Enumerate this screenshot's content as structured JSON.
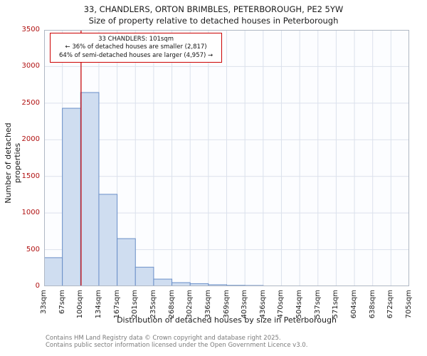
{
  "chart_data": {
    "type": "bar",
    "title": "33, CHANDLERS, ORTON BRIMBLES, PETERBOROUGH, PE2 5YW",
    "subtitle": "Size of property relative to detached houses in Peterborough",
    "xlabel": "Distribution of detached houses by size in Peterborough",
    "ylabel": "Number of detached properties",
    "x_tick_labels": [
      "33sqm",
      "67sqm",
      "100sqm",
      "134sqm",
      "167sqm",
      "201sqm",
      "235sqm",
      "268sqm",
      "302sqm",
      "336sqm",
      "369sqm",
      "403sqm",
      "436sqm",
      "470sqm",
      "504sqm",
      "537sqm",
      "571sqm",
      "604sqm",
      "638sqm",
      "672sqm",
      "705sqm"
    ],
    "bin_edges_sqm": [
      33,
      67,
      100,
      134,
      167,
      201,
      235,
      268,
      302,
      336,
      369,
      403,
      436,
      470,
      504,
      537,
      571,
      604,
      638,
      672,
      705
    ],
    "values": [
      390,
      2430,
      2645,
      1255,
      650,
      260,
      97,
      49,
      35,
      20,
      12,
      10,
      0,
      0,
      0,
      0,
      0,
      0,
      0,
      0
    ],
    "ylim": [
      0,
      3500
    ],
    "y_ticks": [
      0,
      500,
      1000,
      1500,
      2000,
      2500,
      3000,
      3500
    ],
    "grid": true,
    "marker": {
      "value_sqm": 101,
      "color": "#cc0000"
    },
    "annotation": {
      "line1": "33 CHANDLERS: 101sqm",
      "line2": "← 36% of detached houses are smaller (2,817)",
      "line3": "64% of semi-detached houses are larger (4,957) →"
    },
    "colors": {
      "bar_fill": "#cfddf0",
      "bar_stroke": "#6a8fc8",
      "grid": "#dbe1ec",
      "frame": "#b0b8c4",
      "plot_bg": "#fcfdff",
      "y_tick_text": "#b01010",
      "x_tick_text": "#1a1a1a"
    }
  },
  "footer": {
    "line1": "Contains HM Land Registry data © Crown copyright and database right 2025.",
    "line2": "Contains public sector information licensed under the Open Government Licence v3.0."
  }
}
